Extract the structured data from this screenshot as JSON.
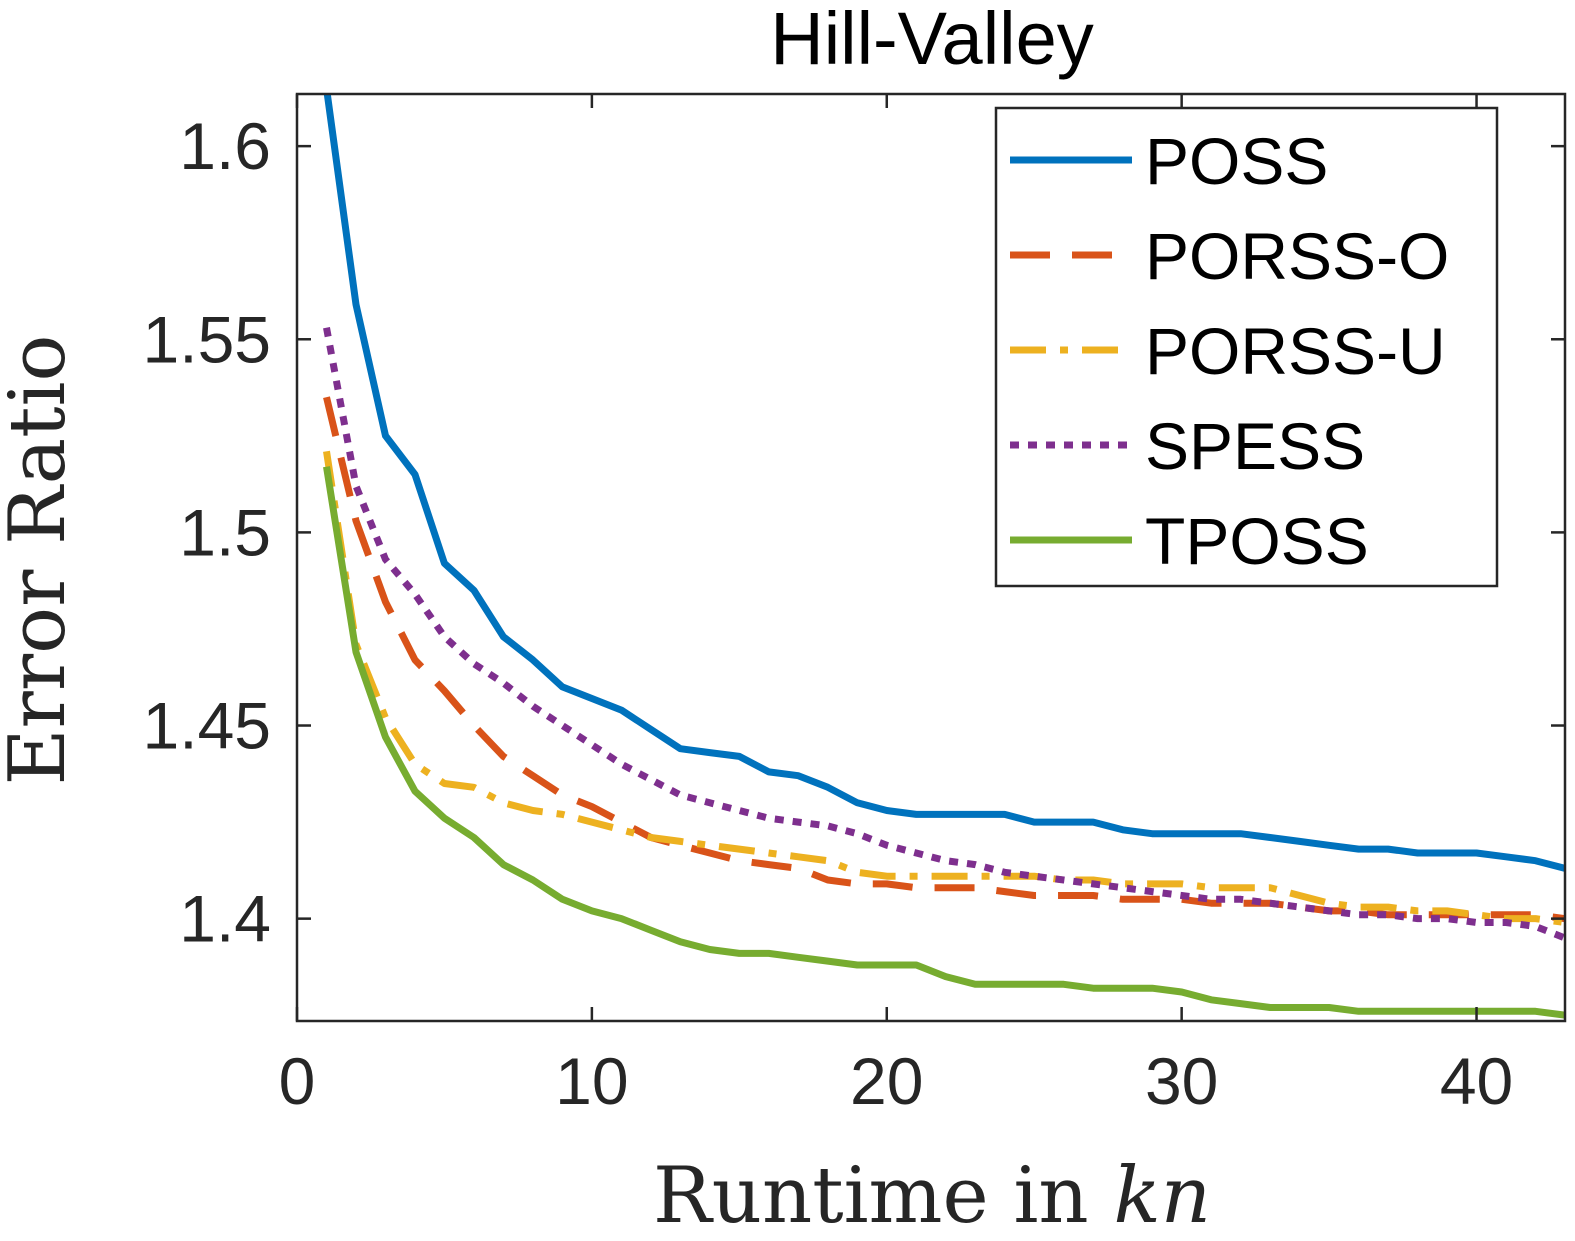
{
  "chart_data": {
    "type": "line",
    "title": "Hill-Valley",
    "xlabel": "Runtime in kn",
    "xlabel_main": "Runtime in ",
    "xlabel_italic": "kn",
    "ylabel": "Error Ratio",
    "xlim": [
      0,
      43
    ],
    "ylim": [
      1.3735,
      1.6135
    ],
    "xticks": [
      0,
      10,
      20,
      30,
      40
    ],
    "xtick_labels": [
      "0",
      "10",
      "20",
      "30",
      "40"
    ],
    "yticks": [
      1.4,
      1.45,
      1.5,
      1.55,
      1.6
    ],
    "ytick_labels": [
      "1.4",
      "1.45",
      "1.5",
      "1.55",
      "1.6"
    ],
    "grid": false,
    "legend_position": "top-right",
    "series": [
      {
        "name": "POSS",
        "color": "#0072BD",
        "style": "solid",
        "x": [
          1,
          2,
          3,
          4,
          5,
          6,
          7,
          8,
          9,
          10,
          11,
          12,
          13,
          14,
          15,
          16,
          17,
          18,
          19,
          20,
          21,
          22,
          23,
          24,
          25,
          26,
          27,
          28,
          29,
          30,
          31,
          32,
          33,
          34,
          35,
          36,
          37,
          38,
          39,
          40,
          41,
          42,
          43
        ],
        "y": [
          1.615,
          1.559,
          1.525,
          1.515,
          1.492,
          1.485,
          1.473,
          1.467,
          1.46,
          1.457,
          1.454,
          1.449,
          1.444,
          1.443,
          1.442,
          1.438,
          1.437,
          1.434,
          1.43,
          1.428,
          1.427,
          1.427,
          1.427,
          1.427,
          1.425,
          1.425,
          1.425,
          1.423,
          1.422,
          1.422,
          1.422,
          1.422,
          1.421,
          1.42,
          1.419,
          1.418,
          1.418,
          1.417,
          1.417,
          1.417,
          1.416,
          1.415,
          1.413
        ]
      },
      {
        "name": "PORSS-O",
        "color": "#D95319",
        "style": "dashed",
        "x": [
          1,
          2,
          3,
          4,
          5,
          6,
          7,
          8,
          9,
          10,
          11,
          12,
          13,
          14,
          15,
          16,
          17,
          18,
          19,
          20,
          21,
          22,
          23,
          24,
          25,
          26,
          27,
          28,
          29,
          30,
          31,
          32,
          33,
          34,
          35,
          36,
          37,
          38,
          39,
          40,
          41,
          42,
          43
        ],
        "y": [
          1.535,
          1.503,
          1.482,
          1.467,
          1.459,
          1.45,
          1.442,
          1.437,
          1.432,
          1.429,
          1.425,
          1.421,
          1.419,
          1.417,
          1.415,
          1.414,
          1.413,
          1.41,
          1.409,
          1.409,
          1.408,
          1.408,
          1.408,
          1.407,
          1.406,
          1.406,
          1.406,
          1.405,
          1.405,
          1.405,
          1.404,
          1.404,
          1.404,
          1.403,
          1.402,
          1.402,
          1.401,
          1.401,
          1.401,
          1.401,
          1.401,
          1.401,
          1.4
        ]
      },
      {
        "name": "PORSS-U",
        "color": "#EDB120",
        "style": "dashdot",
        "x": [
          1,
          2,
          3,
          4,
          5,
          6,
          7,
          8,
          9,
          10,
          11,
          12,
          13,
          14,
          15,
          16,
          17,
          18,
          19,
          20,
          21,
          22,
          23,
          24,
          25,
          26,
          27,
          28,
          29,
          30,
          31,
          32,
          33,
          34,
          35,
          36,
          37,
          38,
          39,
          40,
          41,
          42,
          43
        ],
        "y": [
          1.521,
          1.471,
          1.452,
          1.44,
          1.435,
          1.434,
          1.43,
          1.428,
          1.427,
          1.425,
          1.423,
          1.421,
          1.42,
          1.419,
          1.418,
          1.417,
          1.416,
          1.415,
          1.412,
          1.411,
          1.411,
          1.411,
          1.411,
          1.411,
          1.411,
          1.41,
          1.41,
          1.409,
          1.409,
          1.409,
          1.408,
          1.408,
          1.408,
          1.406,
          1.404,
          1.403,
          1.403,
          1.402,
          1.402,
          1.401,
          1.4,
          1.4,
          1.399
        ]
      },
      {
        "name": "SPESS",
        "color": "#7E2F8E",
        "style": "dotted",
        "x": [
          1,
          2,
          3,
          4,
          5,
          6,
          7,
          8,
          9,
          10,
          11,
          12,
          13,
          14,
          15,
          16,
          17,
          18,
          19,
          20,
          21,
          22,
          23,
          24,
          25,
          26,
          27,
          28,
          29,
          30,
          31,
          32,
          33,
          34,
          35,
          36,
          37,
          38,
          39,
          40,
          41,
          42,
          43
        ],
        "y": [
          1.553,
          1.512,
          1.493,
          1.484,
          1.473,
          1.466,
          1.461,
          1.455,
          1.45,
          1.445,
          1.44,
          1.436,
          1.432,
          1.43,
          1.428,
          1.426,
          1.425,
          1.424,
          1.422,
          1.419,
          1.417,
          1.415,
          1.414,
          1.412,
          1.411,
          1.41,
          1.409,
          1.408,
          1.407,
          1.406,
          1.405,
          1.405,
          1.404,
          1.403,
          1.402,
          1.401,
          1.401,
          1.4,
          1.4,
          1.399,
          1.399,
          1.398,
          1.395
        ]
      },
      {
        "name": "TPOSS",
        "color": "#77AC30",
        "style": "solid",
        "x": [
          1,
          2,
          3,
          4,
          5,
          6,
          7,
          8,
          9,
          10,
          11,
          12,
          13,
          14,
          15,
          16,
          17,
          18,
          19,
          20,
          21,
          22,
          23,
          24,
          25,
          26,
          27,
          28,
          29,
          30,
          31,
          32,
          33,
          34,
          35,
          36,
          37,
          38,
          39,
          40,
          41,
          42,
          43
        ],
        "y": [
          1.517,
          1.469,
          1.447,
          1.433,
          1.426,
          1.421,
          1.414,
          1.41,
          1.405,
          1.402,
          1.4,
          1.397,
          1.394,
          1.392,
          1.391,
          1.391,
          1.39,
          1.389,
          1.388,
          1.388,
          1.388,
          1.385,
          1.383,
          1.383,
          1.383,
          1.383,
          1.382,
          1.382,
          1.382,
          1.381,
          1.379,
          1.378,
          1.377,
          1.377,
          1.377,
          1.376,
          1.376,
          1.376,
          1.376,
          1.376,
          1.376,
          1.376,
          1.375
        ]
      }
    ]
  }
}
